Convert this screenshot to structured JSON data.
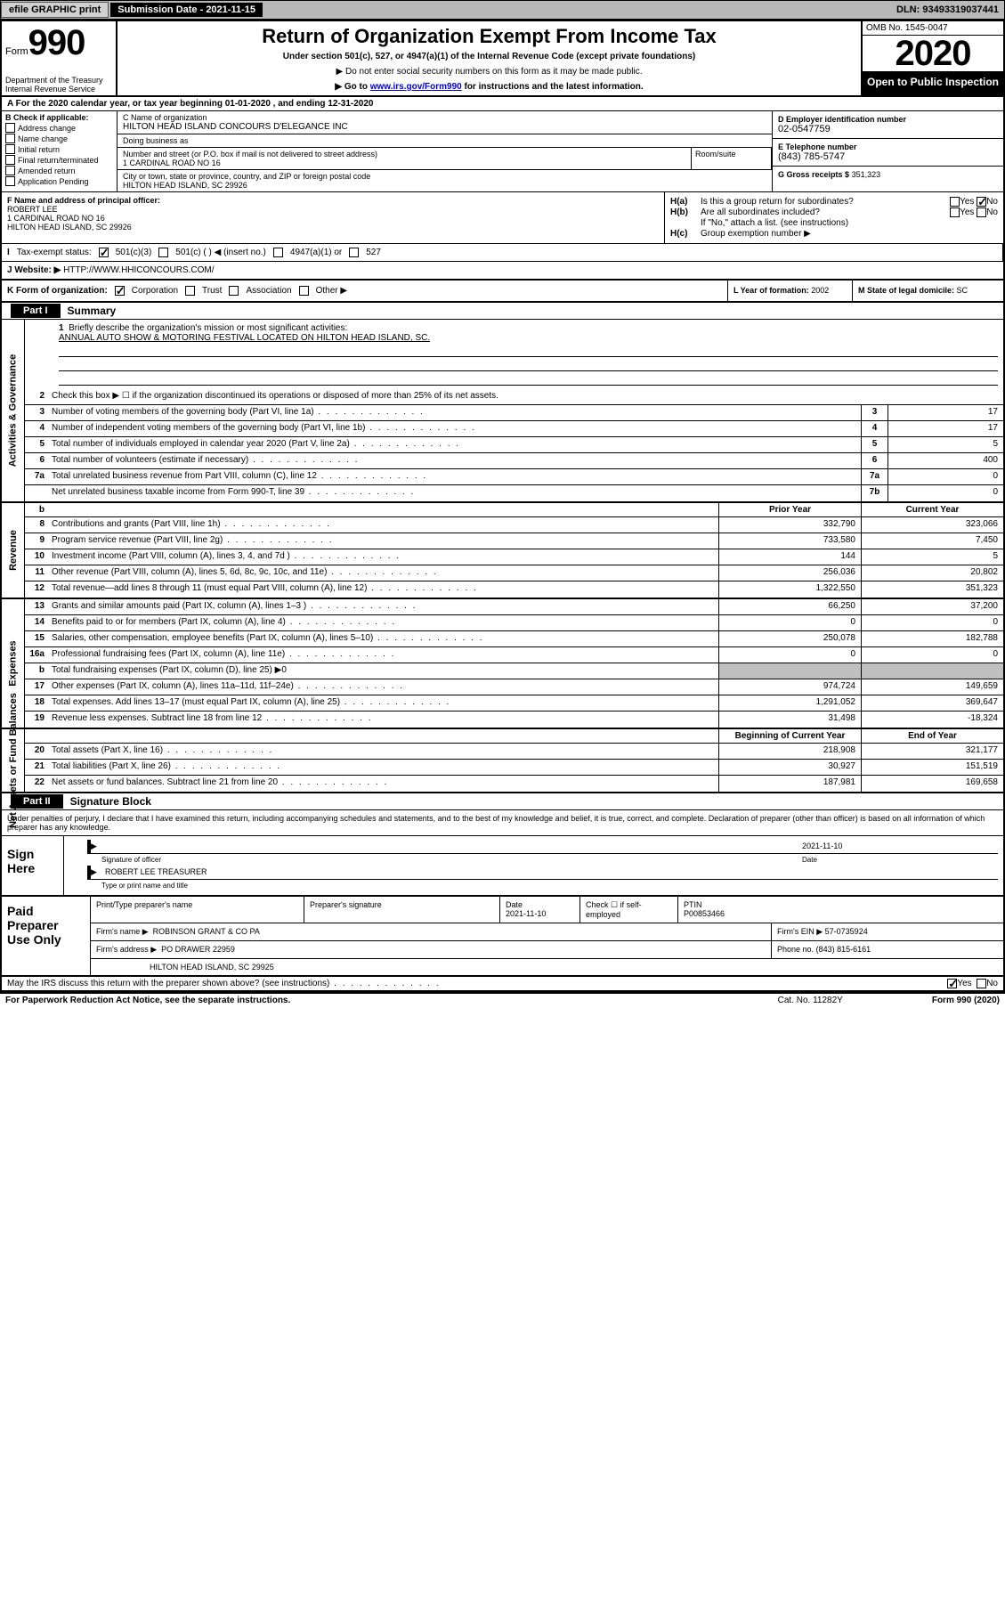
{
  "topbar": {
    "efile": "efile GRAPHIC print",
    "sub_label": "Submission Date - 2021-11-15",
    "dln": "DLN: 93493319037441"
  },
  "header": {
    "form_prefix": "Form",
    "form_no": "990",
    "dept": "Department of the Treasury\nInternal Revenue Service",
    "title": "Return of Organization Exempt From Income Tax",
    "sub1": "Under section 501(c), 527, or 4947(a)(1) of the Internal Revenue Code (except private foundations)",
    "sub2": "▶ Do not enter social security numbers on this form as it may be made public.",
    "sub3_pre": "▶ Go to ",
    "sub3_link": "www.irs.gov/Form990",
    "sub3_post": " for instructions and the latest information.",
    "omb": "OMB No. 1545-0047",
    "year": "2020",
    "open": "Open to Public Inspection"
  },
  "rowA": "A  For the 2020 calendar year, or tax year beginning 01-01-2020   , and ending 12-31-2020",
  "B": {
    "title": "B Check if applicable:",
    "opts": [
      "Address change",
      "Name change",
      "Initial return",
      "Final return/terminated",
      "Amended return",
      "Application Pending"
    ]
  },
  "C": {
    "name_label": "C Name of organization",
    "name": "HILTON HEAD ISLAND CONCOURS D'ELEGANCE INC",
    "dba_label": "Doing business as",
    "addr_label": "Number and street (or P.O. box if mail is not delivered to street address)",
    "addr": "1 CARDINAL ROAD NO 16",
    "room_label": "Room/suite",
    "city_label": "City or town, state or province, country, and ZIP or foreign postal code",
    "city": "HILTON HEAD ISLAND, SC  29926"
  },
  "D": {
    "label": "D Employer identification number",
    "val": "02-0547759"
  },
  "E": {
    "label": "E Telephone number",
    "val": "(843) 785-5747"
  },
  "G": {
    "label": "G Gross receipts $",
    "val": "351,323"
  },
  "F": {
    "label": "F  Name and address of principal officer:",
    "name": "ROBERT LEE",
    "addr1": "1 CARDINAL ROAD NO 16",
    "addr2": "HILTON HEAD ISLAND, SC  29926"
  },
  "H": {
    "a": "Is this a group return for subordinates?",
    "b": "Are all subordinates included?",
    "note": "If \"No,\" attach a list. (see instructions)",
    "c": "Group exemption number ▶"
  },
  "I": {
    "label": "Tax-exempt status:",
    "opts": [
      "501(c)(3)",
      "501(c) (  ) ◀ (insert no.)",
      "4947(a)(1) or",
      "527"
    ]
  },
  "J": {
    "label": "J   Website: ▶  ",
    "val": "HTTP://WWW.HHICONCOURS.COM/"
  },
  "K": {
    "label": "K Form of organization:",
    "opts": [
      "Corporation",
      "Trust",
      "Association",
      "Other ▶"
    ]
  },
  "L": {
    "label": "L Year of formation:",
    "val": "2002"
  },
  "M": {
    "label": "M State of legal domicile:",
    "val": "SC"
  },
  "partI": {
    "tab": "Part I",
    "title": "Summary"
  },
  "mission": {
    "n": "1",
    "text": "Briefly describe the organization's mission or most significant activities:",
    "val": "ANNUAL AUTO SHOW & MOTORING FESTIVAL LOCATED ON HILTON HEAD ISLAND, SC."
  },
  "gov_lines": [
    {
      "n": "2",
      "t": "Check this box ▶ ☐  if the organization discontinued its operations or disposed of more than 25% of its net assets."
    },
    {
      "n": "3",
      "t": "Number of voting members of the governing body (Part VI, line 1a)",
      "box": "3",
      "v": "17"
    },
    {
      "n": "4",
      "t": "Number of independent voting members of the governing body (Part VI, line 1b)",
      "box": "4",
      "v": "17"
    },
    {
      "n": "5",
      "t": "Total number of individuals employed in calendar year 2020 (Part V, line 2a)",
      "box": "5",
      "v": "5"
    },
    {
      "n": "6",
      "t": "Total number of volunteers (estimate if necessary)",
      "box": "6",
      "v": "400"
    },
    {
      "n": "7a",
      "t": "Total unrelated business revenue from Part VIII, column (C), line 12",
      "box": "7a",
      "v": "0"
    },
    {
      "n": "",
      "t": "Net unrelated business taxable income from Form 990-T, line 39",
      "box": "7b",
      "v": "0"
    }
  ],
  "vstrips": {
    "gov": "Activities & Governance",
    "rev": "Revenue",
    "exp": "Expenses",
    "net": "Net Assets or Fund Balances"
  },
  "pycy": {
    "py": "Prior Year",
    "cy": "Current Year",
    "bcy": "Beginning of Current Year",
    "eoy": "End of Year"
  },
  "rev_lines": [
    {
      "n": "8",
      "t": "Contributions and grants (Part VIII, line 1h)",
      "py": "332,790",
      "cy": "323,066"
    },
    {
      "n": "9",
      "t": "Program service revenue (Part VIII, line 2g)",
      "py": "733,580",
      "cy": "7,450"
    },
    {
      "n": "10",
      "t": "Investment income (Part VIII, column (A), lines 3, 4, and 7d )",
      "py": "144",
      "cy": "5"
    },
    {
      "n": "11",
      "t": "Other revenue (Part VIII, column (A), lines 5, 6d, 8c, 9c, 10c, and 11e)",
      "py": "256,036",
      "cy": "20,802"
    },
    {
      "n": "12",
      "t": "Total revenue—add lines 8 through 11 (must equal Part VIII, column (A), line 12)",
      "py": "1,322,550",
      "cy": "351,323"
    }
  ],
  "exp_lines": [
    {
      "n": "13",
      "t": "Grants and similar amounts paid (Part IX, column (A), lines 1–3 )",
      "py": "66,250",
      "cy": "37,200"
    },
    {
      "n": "14",
      "t": "Benefits paid to or for members (Part IX, column (A), line 4)",
      "py": "0",
      "cy": "0"
    },
    {
      "n": "15",
      "t": "Salaries, other compensation, employee benefits (Part IX, column (A), lines 5–10)",
      "py": "250,078",
      "cy": "182,788"
    },
    {
      "n": "16a",
      "t": "Professional fundraising fees (Part IX, column (A), line 11e)",
      "py": "0",
      "cy": "0"
    },
    {
      "n": "b",
      "t": "Total fundraising expenses (Part IX, column (D), line 25) ▶0",
      "py": "",
      "cy": "",
      "grey": true
    },
    {
      "n": "17",
      "t": "Other expenses (Part IX, column (A), lines 11a–11d, 11f–24e)",
      "py": "974,724",
      "cy": "149,659"
    },
    {
      "n": "18",
      "t": "Total expenses. Add lines 13–17 (must equal Part IX, column (A), line 25)",
      "py": "1,291,052",
      "cy": "369,647"
    },
    {
      "n": "19",
      "t": "Revenue less expenses. Subtract line 18 from line 12",
      "py": "31,498",
      "cy": "-18,324"
    }
  ],
  "net_lines": [
    {
      "n": "20",
      "t": "Total assets (Part X, line 16)",
      "py": "218,908",
      "cy": "321,177"
    },
    {
      "n": "21",
      "t": "Total liabilities (Part X, line 26)",
      "py": "30,927",
      "cy": "151,519"
    },
    {
      "n": "22",
      "t": "Net assets or fund balances. Subtract line 21 from line 20",
      "py": "187,981",
      "cy": "169,658"
    }
  ],
  "partII": {
    "tab": "Part II",
    "title": "Signature Block"
  },
  "jurat": "Under penalties of perjury, I declare that I have examined this return, including accompanying schedules and statements, and to the best of my knowledge and belief, it is true, correct, and complete. Declaration of preparer (other than officer) is based on all information of which preparer has any knowledge.",
  "sign": {
    "left": "Sign Here",
    "sig_label": "Signature of officer",
    "date_label": "Date",
    "date": "2021-11-10",
    "name": "ROBERT LEE  TREASURER",
    "name_label": "Type or print name and title"
  },
  "paid": {
    "left": "Paid Preparer Use Only",
    "r1": {
      "c1": "Print/Type preparer's name",
      "c2": "Preparer's signature",
      "c3": "Date",
      "c3v": "2021-11-10",
      "c4": "Check ☐  if self-employed",
      "c5": "PTIN",
      "c5v": "P00853466"
    },
    "r2": {
      "c1": "Firm's name    ▶",
      "c1v": "ROBINSON GRANT & CO PA",
      "c2": "Firm's EIN ▶",
      "c2v": "57-0735924"
    },
    "r3": {
      "c1": "Firm's address ▶",
      "c1v": "PO DRAWER 22959",
      "c2": "Phone no.",
      "c2v": "(843) 815-6161"
    },
    "r4": {
      "c1": "",
      "c1v": "HILTON HEAD ISLAND, SC  29925"
    }
  },
  "discuss": "May the IRS discuss this return with the preparer shown above? (see instructions)",
  "footer": {
    "left": "For Paperwork Reduction Act Notice, see the separate instructions.",
    "cat": "Cat. No. 11282Y",
    "right": "Form 990 (2020)"
  }
}
